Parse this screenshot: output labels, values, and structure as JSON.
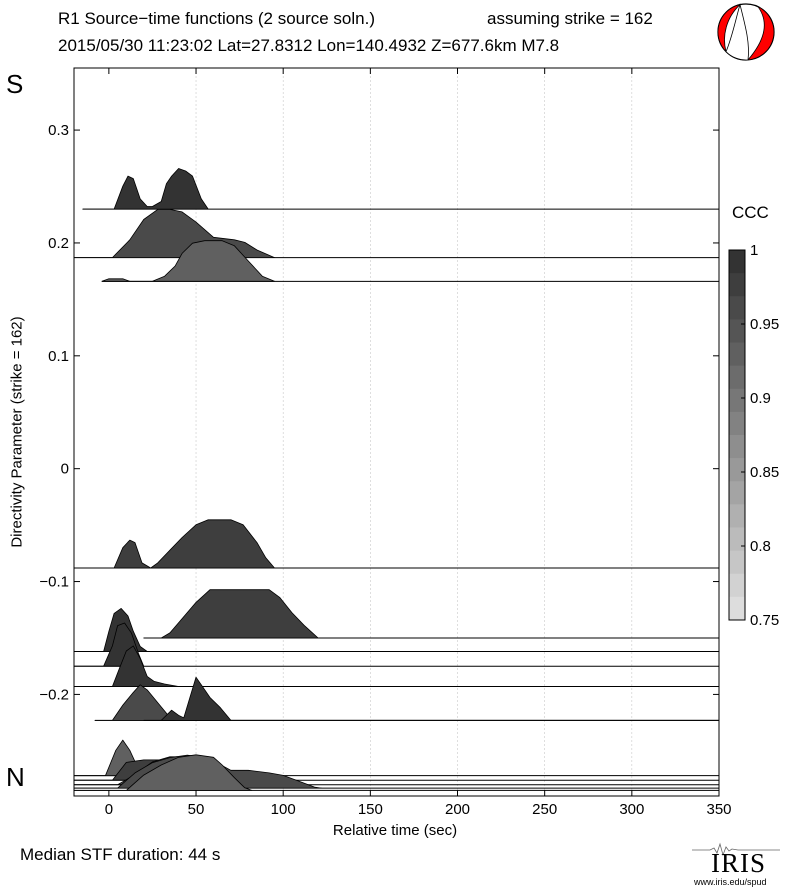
{
  "header": {
    "title_line1": "R1 Source−time functions (2 source soln.)",
    "strike_text": "assuming strike = 162",
    "title_line2": "2015/05/30 11:23:02  Lat=27.8312 Lon=140.4932  Z=677.6km  M7.8"
  },
  "side_labels": {
    "south": "S",
    "north": "N"
  },
  "footer": {
    "median_text": "Median STF duration: 44 s",
    "logo_text": "IRIS",
    "logo_url": "www.iris.edu/spud"
  },
  "beachball": {
    "fill_color": "#ff0000",
    "icon": "beachball-icon"
  },
  "chart_data": {
    "type": "area",
    "title": "R1 Source−time functions (2 source soln.)",
    "xlabel": "Relative time (sec)",
    "ylabel": "Directivity Parameter (strike = 162)",
    "xlim": [
      -20,
      350
    ],
    "ylim": [
      -0.29,
      0.355
    ],
    "x_ticks": [
      0,
      50,
      100,
      150,
      200,
      250,
      300,
      350
    ],
    "y_ticks": [
      0.3,
      0.2,
      0.1,
      0,
      -0.1,
      -0.2
    ],
    "y_tick_labels": [
      "0.3",
      "0.2",
      "0.1",
      "0",
      "−0.1",
      "−0.2"
    ],
    "grid": "vertical dashed lines at x ticks",
    "amplitude_scale": 0.045,
    "colorbar": {
      "label": "CCC",
      "min": 0.75,
      "max": 1.0,
      "ticks": [
        1,
        0.95,
        0.9,
        0.85,
        0.8,
        0.75
      ],
      "tick_labels": [
        "1",
        "0.95",
        "0.9",
        "0.85",
        "0.8",
        "0.75"
      ],
      "n_levels": 16,
      "color_dark": [
        51,
        51,
        51
      ],
      "color_light": [
        221,
        221,
        221
      ]
    },
    "series": [
      {
        "name": "stf-1",
        "baseline": 0.23,
        "ccc": 0.995,
        "x_start": -15,
        "pts": [
          [
            -15,
            0
          ],
          [
            3,
            0
          ],
          [
            8,
            0.45
          ],
          [
            11,
            0.65
          ],
          [
            14,
            0.6
          ],
          [
            18,
            0.2
          ],
          [
            22,
            0.05
          ],
          [
            25,
            0.05
          ],
          [
            30,
            0.15
          ],
          [
            33,
            0.5
          ],
          [
            36,
            0.65
          ],
          [
            40,
            0.8
          ],
          [
            44,
            0.75
          ],
          [
            48,
            0.65
          ],
          [
            53,
            0.2
          ],
          [
            57,
            0
          ]
        ]
      },
      {
        "name": "stf-2",
        "baseline": 0.187,
        "ccc": 0.965,
        "x_start": -20,
        "pts": [
          [
            -20,
            0
          ],
          [
            2,
            0
          ],
          [
            12,
            0.35
          ],
          [
            20,
            0.75
          ],
          [
            28,
            0.95
          ],
          [
            35,
            0.95
          ],
          [
            42,
            0.9
          ],
          [
            50,
            0.7
          ],
          [
            60,
            0.4
          ],
          [
            72,
            0.35
          ],
          [
            78,
            0.3
          ],
          [
            85,
            0.15
          ],
          [
            95,
            0
          ]
        ]
      },
      {
        "name": "stf-3",
        "baseline": 0.166,
        "ccc": 0.93,
        "x_start": -4,
        "pts": [
          [
            -4,
            0
          ],
          [
            0,
            0.05
          ],
          [
            8,
            0.05
          ],
          [
            12,
            0
          ],
          [
            25,
            0
          ],
          [
            32,
            0.1
          ],
          [
            38,
            0.3
          ],
          [
            42,
            0.55
          ],
          [
            48,
            0.75
          ],
          [
            55,
            0.8
          ],
          [
            65,
            0.8
          ],
          [
            72,
            0.7
          ],
          [
            80,
            0.4
          ],
          [
            88,
            0.1
          ],
          [
            95,
            0
          ]
        ]
      },
      {
        "name": "stf-4",
        "baseline": -0.088,
        "ccc": 0.97,
        "x_start": -20,
        "pts": [
          [
            -20,
            0
          ],
          [
            3,
            0
          ],
          [
            8,
            0.4
          ],
          [
            12,
            0.55
          ],
          [
            15,
            0.5
          ],
          [
            19,
            0.1
          ],
          [
            24,
            0
          ],
          [
            28,
            0.1
          ],
          [
            35,
            0.35
          ],
          [
            42,
            0.6
          ],
          [
            50,
            0.85
          ],
          [
            57,
            0.95
          ],
          [
            70,
            0.95
          ],
          [
            77,
            0.85
          ],
          [
            85,
            0.5
          ],
          [
            90,
            0.2
          ],
          [
            95,
            0
          ]
        ]
      },
      {
        "name": "stf-5",
        "baseline": -0.15,
        "ccc": 0.97,
        "x_start": 20,
        "pts": [
          [
            20,
            0
          ],
          [
            30,
            0
          ],
          [
            35,
            0.1
          ],
          [
            40,
            0.3
          ],
          [
            50,
            0.7
          ],
          [
            58,
            0.95
          ],
          [
            92,
            0.95
          ],
          [
            98,
            0.8
          ],
          [
            105,
            0.5
          ],
          [
            112,
            0.25
          ],
          [
            120,
            0
          ]
        ]
      },
      {
        "name": "stf-6",
        "baseline": -0.162,
        "ccc": 0.99,
        "x_start": -20,
        "pts": [
          [
            -20,
            0
          ],
          [
            -3,
            0
          ],
          [
            0,
            0.4
          ],
          [
            3,
            0.75
          ],
          [
            7,
            0.85
          ],
          [
            11,
            0.7
          ],
          [
            14,
            0.4
          ],
          [
            18,
            0.1
          ],
          [
            22,
            0
          ]
        ]
      },
      {
        "name": "stf-7",
        "baseline": -0.175,
        "ccc": 0.995,
        "x_start": -20,
        "pts": [
          [
            -20,
            0
          ],
          [
            -3,
            0
          ],
          [
            2,
            0.4
          ],
          [
            5,
            0.8
          ],
          [
            9,
            0.85
          ],
          [
            13,
            0.65
          ],
          [
            17,
            0.25
          ],
          [
            20,
            0
          ]
        ]
      },
      {
        "name": "stf-8",
        "baseline": -0.193,
        "ccc": 0.99,
        "x_start": -20,
        "pts": [
          [
            -20,
            0
          ],
          [
            2,
            0
          ],
          [
            6,
            0.35
          ],
          [
            10,
            0.7
          ],
          [
            14,
            0.8
          ],
          [
            18,
            0.55
          ],
          [
            22,
            0.2
          ],
          [
            26,
            0.1
          ],
          [
            32,
            0.05
          ],
          [
            40,
            0
          ]
        ]
      },
      {
        "name": "stf-9",
        "baseline": -0.223,
        "ccc": 0.955,
        "x_start": -8,
        "pts": [
          [
            -8,
            0
          ],
          [
            2,
            0
          ],
          [
            8,
            0.3
          ],
          [
            14,
            0.55
          ],
          [
            18,
            0.7
          ],
          [
            22,
            0.6
          ],
          [
            28,
            0.35
          ],
          [
            34,
            0.1
          ],
          [
            38,
            0
          ]
        ]
      },
      {
        "name": "stf-10",
        "baseline": -0.223,
        "ccc": 0.985,
        "x_start": 20,
        "pts": [
          [
            20,
            0
          ],
          [
            30,
            0
          ],
          [
            36,
            0.2
          ],
          [
            40,
            0.1
          ],
          [
            43,
            0.05
          ],
          [
            46,
            0.4
          ],
          [
            50,
            0.85
          ],
          [
            53,
            0.7
          ],
          [
            58,
            0.45
          ],
          [
            64,
            0.25
          ],
          [
            70,
            0
          ]
        ]
      },
      {
        "name": "stf-11",
        "baseline": -0.272,
        "ccc": 0.925,
        "x_start": -20,
        "pts": [
          [
            -20,
            0
          ],
          [
            -2,
            0
          ],
          [
            4,
            0.5
          ],
          [
            8,
            0.7
          ],
          [
            12,
            0.5
          ],
          [
            16,
            0.2
          ],
          [
            20,
            0
          ]
        ]
      },
      {
        "name": "stf-12",
        "baseline": -0.276,
        "ccc": 0.975,
        "x_start": -20,
        "pts": [
          [
            -20,
            0
          ],
          [
            2,
            0
          ],
          [
            10,
            0.35
          ],
          [
            20,
            0.4
          ],
          [
            30,
            0.4
          ],
          [
            35,
            0.3
          ],
          [
            40,
            0.2
          ],
          [
            50,
            0.15
          ],
          [
            60,
            0.1
          ],
          [
            70,
            0.1
          ],
          [
            80,
            0.05
          ],
          [
            90,
            0.05
          ],
          [
            100,
            0
          ]
        ]
      },
      {
        "name": "stf-13",
        "baseline": -0.28,
        "ccc": 0.955,
        "x_start": -20,
        "pts": [
          [
            -20,
            0
          ],
          [
            5,
            0
          ],
          [
            15,
            0.2
          ],
          [
            25,
            0.45
          ],
          [
            35,
            0.55
          ],
          [
            45,
            0.55
          ],
          [
            55,
            0.45
          ],
          [
            65,
            0.3
          ],
          [
            75,
            0.15
          ],
          [
            88,
            0.05
          ],
          [
            100,
            0
          ]
        ]
      },
      {
        "name": "stf-14",
        "baseline": -0.283,
        "ccc": 0.965,
        "x_start": -20,
        "pts": [
          [
            -20,
            0
          ],
          [
            5,
            0
          ],
          [
            15,
            0.3
          ],
          [
            25,
            0.5
          ],
          [
            35,
            0.6
          ],
          [
            45,
            0.65
          ],
          [
            55,
            0.6
          ],
          [
            62,
            0.5
          ],
          [
            70,
            0.35
          ],
          [
            80,
            0.35
          ],
          [
            92,
            0.3
          ],
          [
            100,
            0.25
          ],
          [
            108,
            0.15
          ],
          [
            118,
            0.02
          ],
          [
            122,
            0
          ]
        ]
      },
      {
        "name": "stf-15",
        "baseline": -0.285,
        "ccc": 0.925,
        "x_start": -20,
        "pts": [
          [
            -20,
            0
          ],
          [
            10,
            0
          ],
          [
            20,
            0.3
          ],
          [
            30,
            0.5
          ],
          [
            40,
            0.65
          ],
          [
            50,
            0.7
          ],
          [
            60,
            0.65
          ],
          [
            65,
            0.5
          ],
          [
            72,
            0.25
          ],
          [
            78,
            0.05
          ],
          [
            82,
            0
          ]
        ]
      }
    ]
  }
}
